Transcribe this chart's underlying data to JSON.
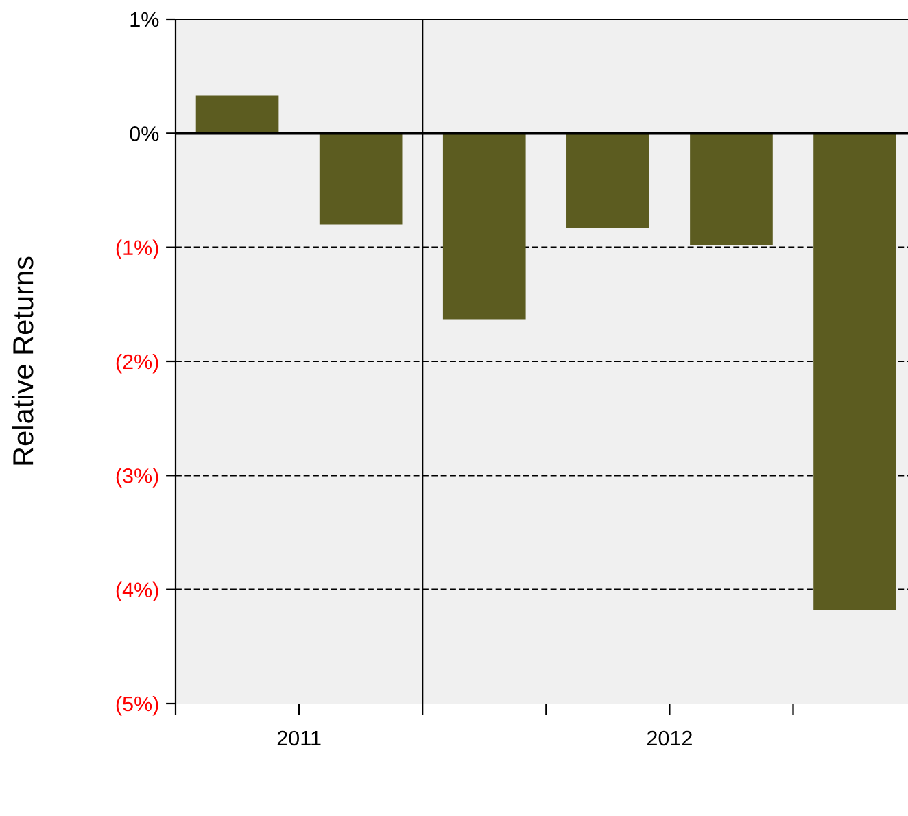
{
  "chart_data": {
    "type": "bar",
    "ylabel": "Relative Returns",
    "categories": [
      null,
      null,
      null,
      null,
      null,
      null
    ],
    "series": [
      {
        "color": "#5c5c20",
        "values": [
          0.33,
          -0.8,
          -1.63,
          -0.83,
          -0.98,
          -4.18
        ]
      }
    ],
    "ylim": [
      -5,
      1
    ],
    "yticks": [
      {
        "value": 1,
        "label": "1%"
      },
      {
        "value": 0,
        "label": "0%"
      },
      {
        "value": -1,
        "label": "(1%)"
      },
      {
        "value": -2,
        "label": "(2%)"
      },
      {
        "value": -3,
        "label": "(3%)"
      },
      {
        "value": -4,
        "label": "(4%)"
      },
      {
        "value": -5,
        "label": "(5%)"
      }
    ],
    "annotations": [
      "2011",
      "2012"
    ],
    "grid": "y",
    "legend": false
  }
}
